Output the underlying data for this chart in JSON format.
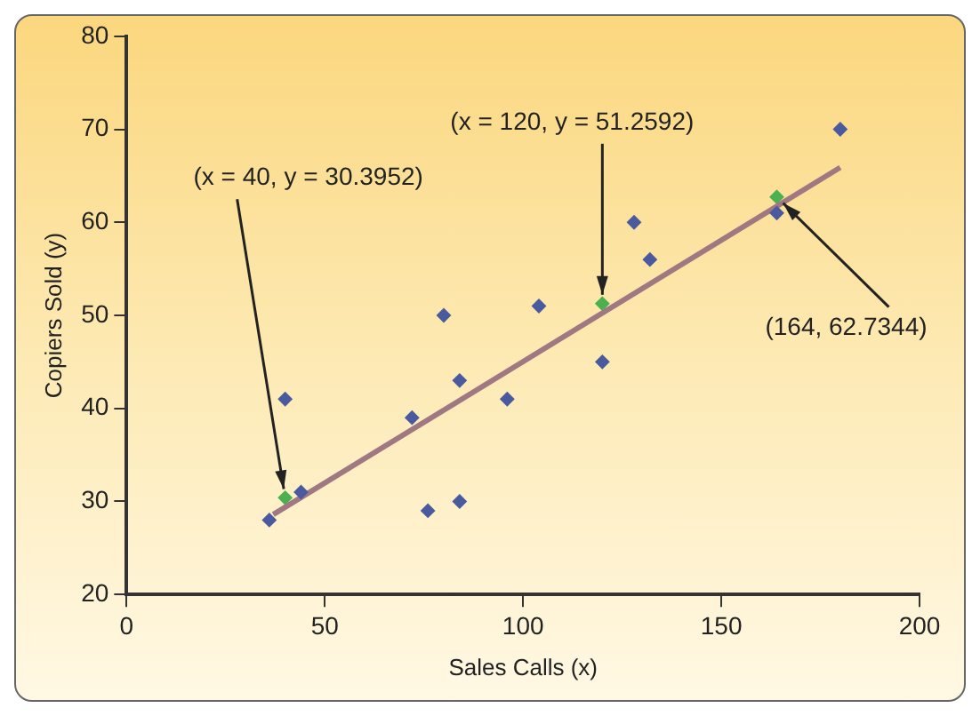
{
  "chart_data": {
    "type": "scatter",
    "xlabel": "Sales Calls (x)",
    "ylabel": "Copiers Sold (y)",
    "xlim": [
      0,
      200
    ],
    "xticks": [
      0,
      50,
      100,
      150,
      200
    ],
    "ylim": [
      20,
      80
    ],
    "yticks": [
      20,
      30,
      40,
      50,
      60,
      70,
      80
    ],
    "grid": false,
    "legend": false,
    "marker": "diamond",
    "series": [
      {
        "color": "#4a5a9e",
        "x": [
          96,
          40,
          104,
          128,
          164,
          76,
          72,
          80,
          36,
          84,
          180,
          132,
          120,
          44,
          84
        ],
        "values": [
          41,
          41,
          51,
          60,
          61,
          29,
          39,
          50,
          28,
          43,
          70,
          56,
          45,
          31,
          30
        ]
      },
      {
        "type": "line",
        "color": "#a07882",
        "marker": "none",
        "x": [
          37,
          180
        ],
        "values": [
          28.6,
          65.9
        ]
      },
      {
        "color": "#4cb050",
        "x": [
          40,
          120,
          164
        ],
        "values": [
          30.3952,
          51.2592,
          62.7344
        ]
      }
    ],
    "annotations": [
      {
        "text": "(x = 40, y = 30.3952)",
        "x": 40,
        "y": 30.3952
      },
      {
        "text": "(x = 120, y = 51.2592)",
        "x": 120,
        "y": 51.2592
      },
      {
        "text": "(164, 62.7344)",
        "x": 164,
        "y": 62.7344
      }
    ]
  }
}
